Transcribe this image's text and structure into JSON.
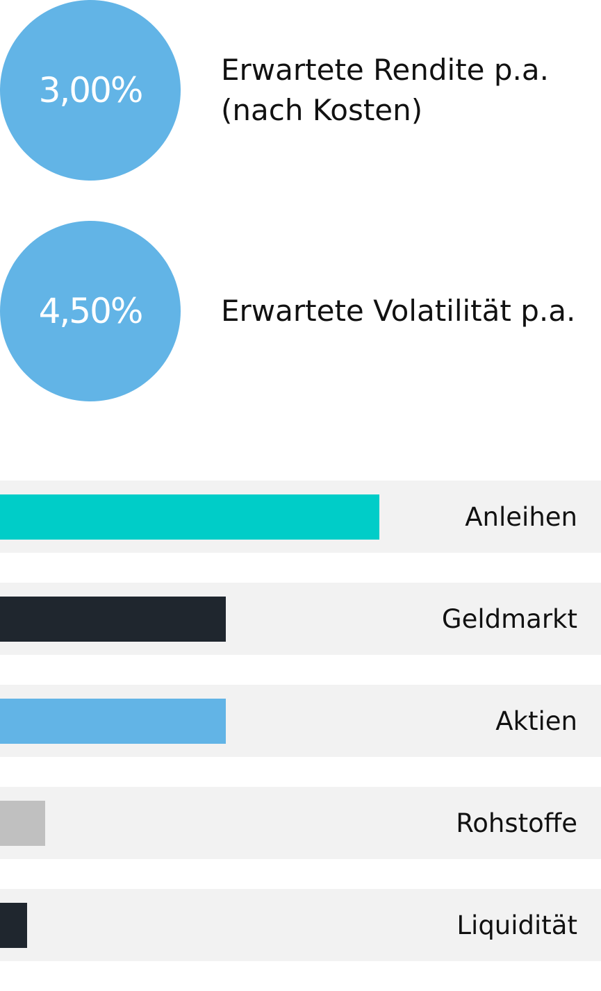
{
  "metrics": [
    {
      "value": "3,00%",
      "label_lines": [
        "Erwartete Rendite p.a.",
        "(nach Kosten)"
      ]
    },
    {
      "value": "4,50%",
      "label_lines": [
        "Erwartete Volatilität p.a."
      ]
    }
  ],
  "colors": {
    "metric_circle": "#62b4e6",
    "row_background": "#f2f2f2"
  },
  "chart_data": {
    "type": "bar",
    "orientation": "horizontal",
    "categories": [
      "Anleihen",
      "Geldmarkt",
      "Aktien",
      "Rohstoffe",
      "Liquidität"
    ],
    "values": [
      42,
      25,
      25,
      5,
      3
    ],
    "colors": [
      "#00cdc8",
      "#1f262e",
      "#62b4e6",
      "#c0c0c0",
      "#1f262e"
    ],
    "xlim": [
      0,
      66.5
    ],
    "grid": false,
    "legend": "none"
  }
}
